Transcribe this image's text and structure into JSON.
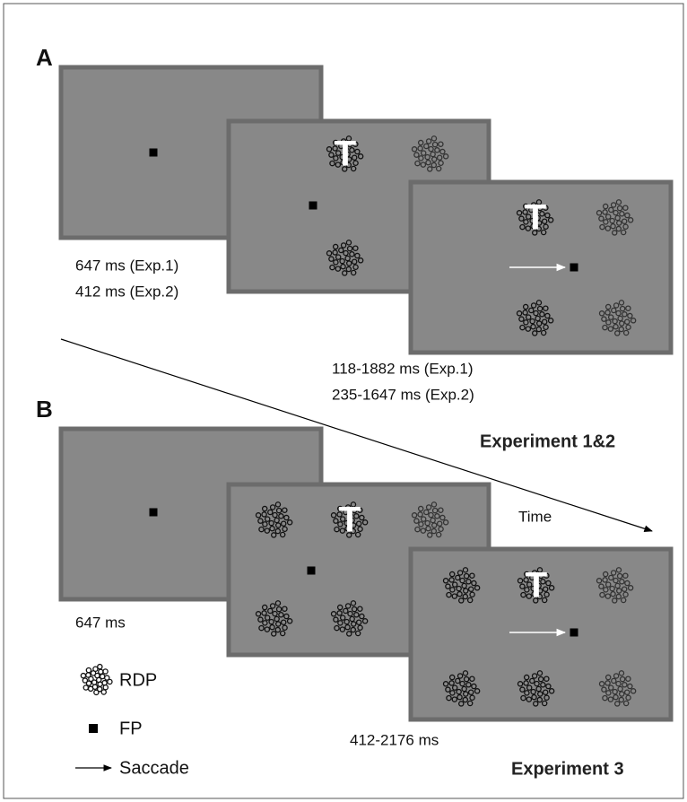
{
  "panel_a": {
    "label": "A",
    "fixation_durations": [
      "647 ms (Exp.1)",
      "412 ms (Exp.2)"
    ],
    "stimulus_durations": [
      "118-1882 ms (Exp.1)",
      "235-1647 ms (Exp.2)"
    ],
    "experiment": "Experiment 1&2"
  },
  "time_axis": {
    "label": "Time"
  },
  "panel_b": {
    "label": "B",
    "fixation_duration": "647 ms",
    "stimulus_duration": "412-2176 ms",
    "experiment": "Experiment 3"
  },
  "target_letter": "T",
  "legend": [
    {
      "label": "RDP"
    },
    {
      "label": "FP"
    },
    {
      "label": "Saccade"
    }
  ]
}
